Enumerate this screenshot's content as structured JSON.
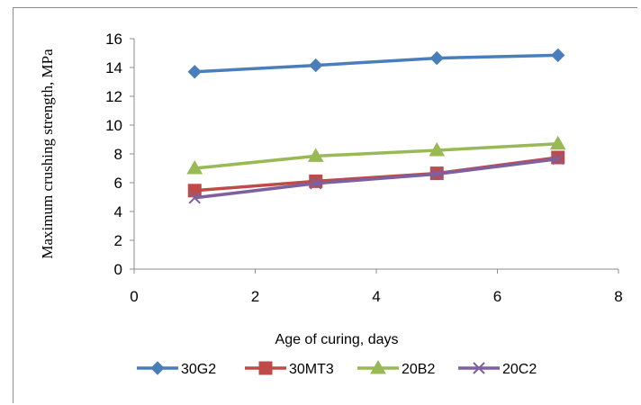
{
  "chart_data": {
    "type": "line",
    "xlabel": "Age of curing, days",
    "ylabel": "Maximum crushing strength, MPa",
    "xlim": [
      0,
      8
    ],
    "ylim": [
      0,
      16
    ],
    "xticks": [
      0,
      2,
      4,
      6,
      8
    ],
    "yticks": [
      0,
      2,
      4,
      6,
      8,
      10,
      12,
      14,
      16
    ],
    "grid": false,
    "legend_position": "bottom",
    "series": [
      {
        "name": "30G2",
        "color": "#4a7ebb",
        "marker": "diamond",
        "x": [
          1,
          3,
          5,
          7
        ],
        "y": [
          13.7,
          14.15,
          14.65,
          14.85
        ]
      },
      {
        "name": "30MT3",
        "color": "#be4b48",
        "marker": "square",
        "x": [
          1,
          3,
          5,
          7
        ],
        "y": [
          5.45,
          6.1,
          6.65,
          7.75
        ]
      },
      {
        "name": "20B2",
        "color": "#98b954",
        "marker": "triangle",
        "x": [
          1,
          3,
          5,
          7
        ],
        "y": [
          7.0,
          7.85,
          8.25,
          8.7
        ]
      },
      {
        "name": "20C2",
        "color": "#7d60a0",
        "marker": "x",
        "x": [
          1,
          3,
          5,
          7
        ],
        "y": [
          4.95,
          5.95,
          6.6,
          7.65
        ]
      }
    ]
  }
}
